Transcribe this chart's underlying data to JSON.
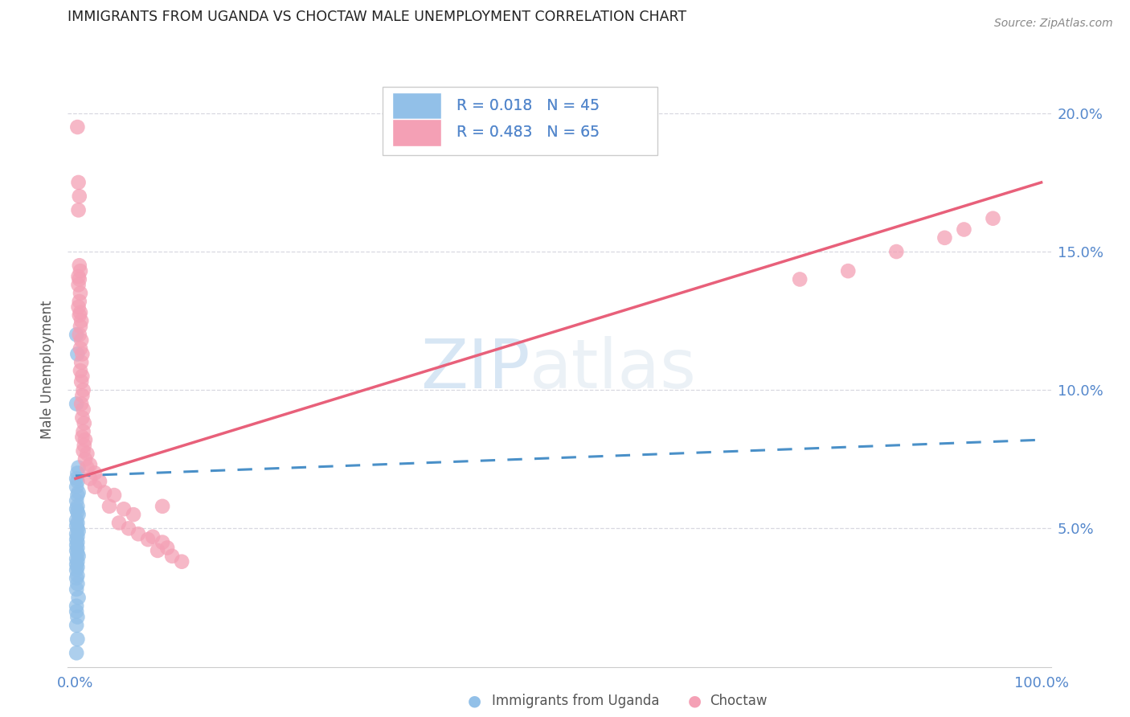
{
  "title": "IMMIGRANTS FROM UGANDA VS CHOCTAW MALE UNEMPLOYMENT CORRELATION CHART",
  "source": "Source: ZipAtlas.com",
  "ylabel": "Male Unemployment",
  "watermark_zip": "ZIP",
  "watermark_atlas": "atlas",
  "legend": {
    "blue": {
      "R": "0.018",
      "N": "45",
      "label": "Immigrants from Uganda"
    },
    "pink": {
      "R": "0.483",
      "N": "65",
      "label": "Choctaw"
    }
  },
  "y_ticks": [
    0.05,
    0.1,
    0.15,
    0.2
  ],
  "y_tick_labels": [
    "5.0%",
    "10.0%",
    "15.0%",
    "20.0%"
  ],
  "blue_color": "#92c0e8",
  "pink_color": "#f4a0b5",
  "blue_line_color": "#4a90c8",
  "pink_line_color": "#e8607a",
  "grid_color": "#d8d8e0",
  "background": "#ffffff",
  "title_color": "#222222",
  "source_color": "#888888",
  "tick_color": "#5588cc",
  "ylabel_color": "#555555",
  "ylim": [
    0.0,
    0.215
  ],
  "xlim": [
    -0.008,
    1.01
  ],
  "blue_line_start_y": 0.069,
  "blue_line_end_y": 0.082,
  "pink_line_start_y": 0.068,
  "pink_line_end_y": 0.175,
  "blue_scatter_x": [
    0.001,
    0.002,
    0.001,
    0.003,
    0.002,
    0.001,
    0.002,
    0.001,
    0.003,
    0.002,
    0.001,
    0.002,
    0.001,
    0.002,
    0.003,
    0.001,
    0.002,
    0.001,
    0.002,
    0.003,
    0.001,
    0.002,
    0.001,
    0.002,
    0.001,
    0.002,
    0.001,
    0.002,
    0.003,
    0.001,
    0.002,
    0.001,
    0.002,
    0.001,
    0.002,
    0.001,
    0.002,
    0.001,
    0.003,
    0.001,
    0.001,
    0.002,
    0.001,
    0.002,
    0.001
  ],
  "blue_scatter_y": [
    0.12,
    0.113,
    0.095,
    0.072,
    0.07,
    0.068,
    0.067,
    0.065,
    0.063,
    0.062,
    0.06,
    0.058,
    0.057,
    0.056,
    0.055,
    0.053,
    0.052,
    0.051,
    0.05,
    0.049,
    0.048,
    0.047,
    0.046,
    0.045,
    0.044,
    0.043,
    0.042,
    0.041,
    0.04,
    0.039,
    0.038,
    0.037,
    0.036,
    0.035,
    0.033,
    0.032,
    0.03,
    0.028,
    0.025,
    0.022,
    0.02,
    0.018,
    0.015,
    0.01,
    0.005
  ],
  "pink_scatter_x": [
    0.002,
    0.003,
    0.004,
    0.003,
    0.004,
    0.005,
    0.003,
    0.004,
    0.003,
    0.005,
    0.004,
    0.003,
    0.005,
    0.004,
    0.006,
    0.005,
    0.004,
    0.006,
    0.005,
    0.007,
    0.006,
    0.005,
    0.007,
    0.006,
    0.008,
    0.007,
    0.006,
    0.008,
    0.007,
    0.009,
    0.008,
    0.007,
    0.01,
    0.009,
    0.008,
    0.012,
    0.01,
    0.015,
    0.012,
    0.02,
    0.015,
    0.025,
    0.02,
    0.03,
    0.04,
    0.035,
    0.05,
    0.06,
    0.045,
    0.055,
    0.065,
    0.08,
    0.075,
    0.09,
    0.095,
    0.085,
    0.1,
    0.11,
    0.09,
    0.75,
    0.8,
    0.85,
    0.9,
    0.92,
    0.95
  ],
  "pink_scatter_y": [
    0.195,
    0.175,
    0.17,
    0.165,
    0.145,
    0.143,
    0.141,
    0.14,
    0.138,
    0.135,
    0.132,
    0.13,
    0.128,
    0.127,
    0.125,
    0.123,
    0.12,
    0.118,
    0.115,
    0.113,
    0.11,
    0.107,
    0.105,
    0.103,
    0.1,
    0.098,
    0.095,
    0.093,
    0.09,
    0.088,
    0.085,
    0.083,
    0.082,
    0.08,
    0.078,
    0.077,
    0.075,
    0.073,
    0.072,
    0.07,
    0.068,
    0.067,
    0.065,
    0.063,
    0.062,
    0.058,
    0.057,
    0.055,
    0.052,
    0.05,
    0.048,
    0.047,
    0.046,
    0.045,
    0.043,
    0.042,
    0.04,
    0.038,
    0.058,
    0.14,
    0.143,
    0.15,
    0.155,
    0.158,
    0.162
  ]
}
